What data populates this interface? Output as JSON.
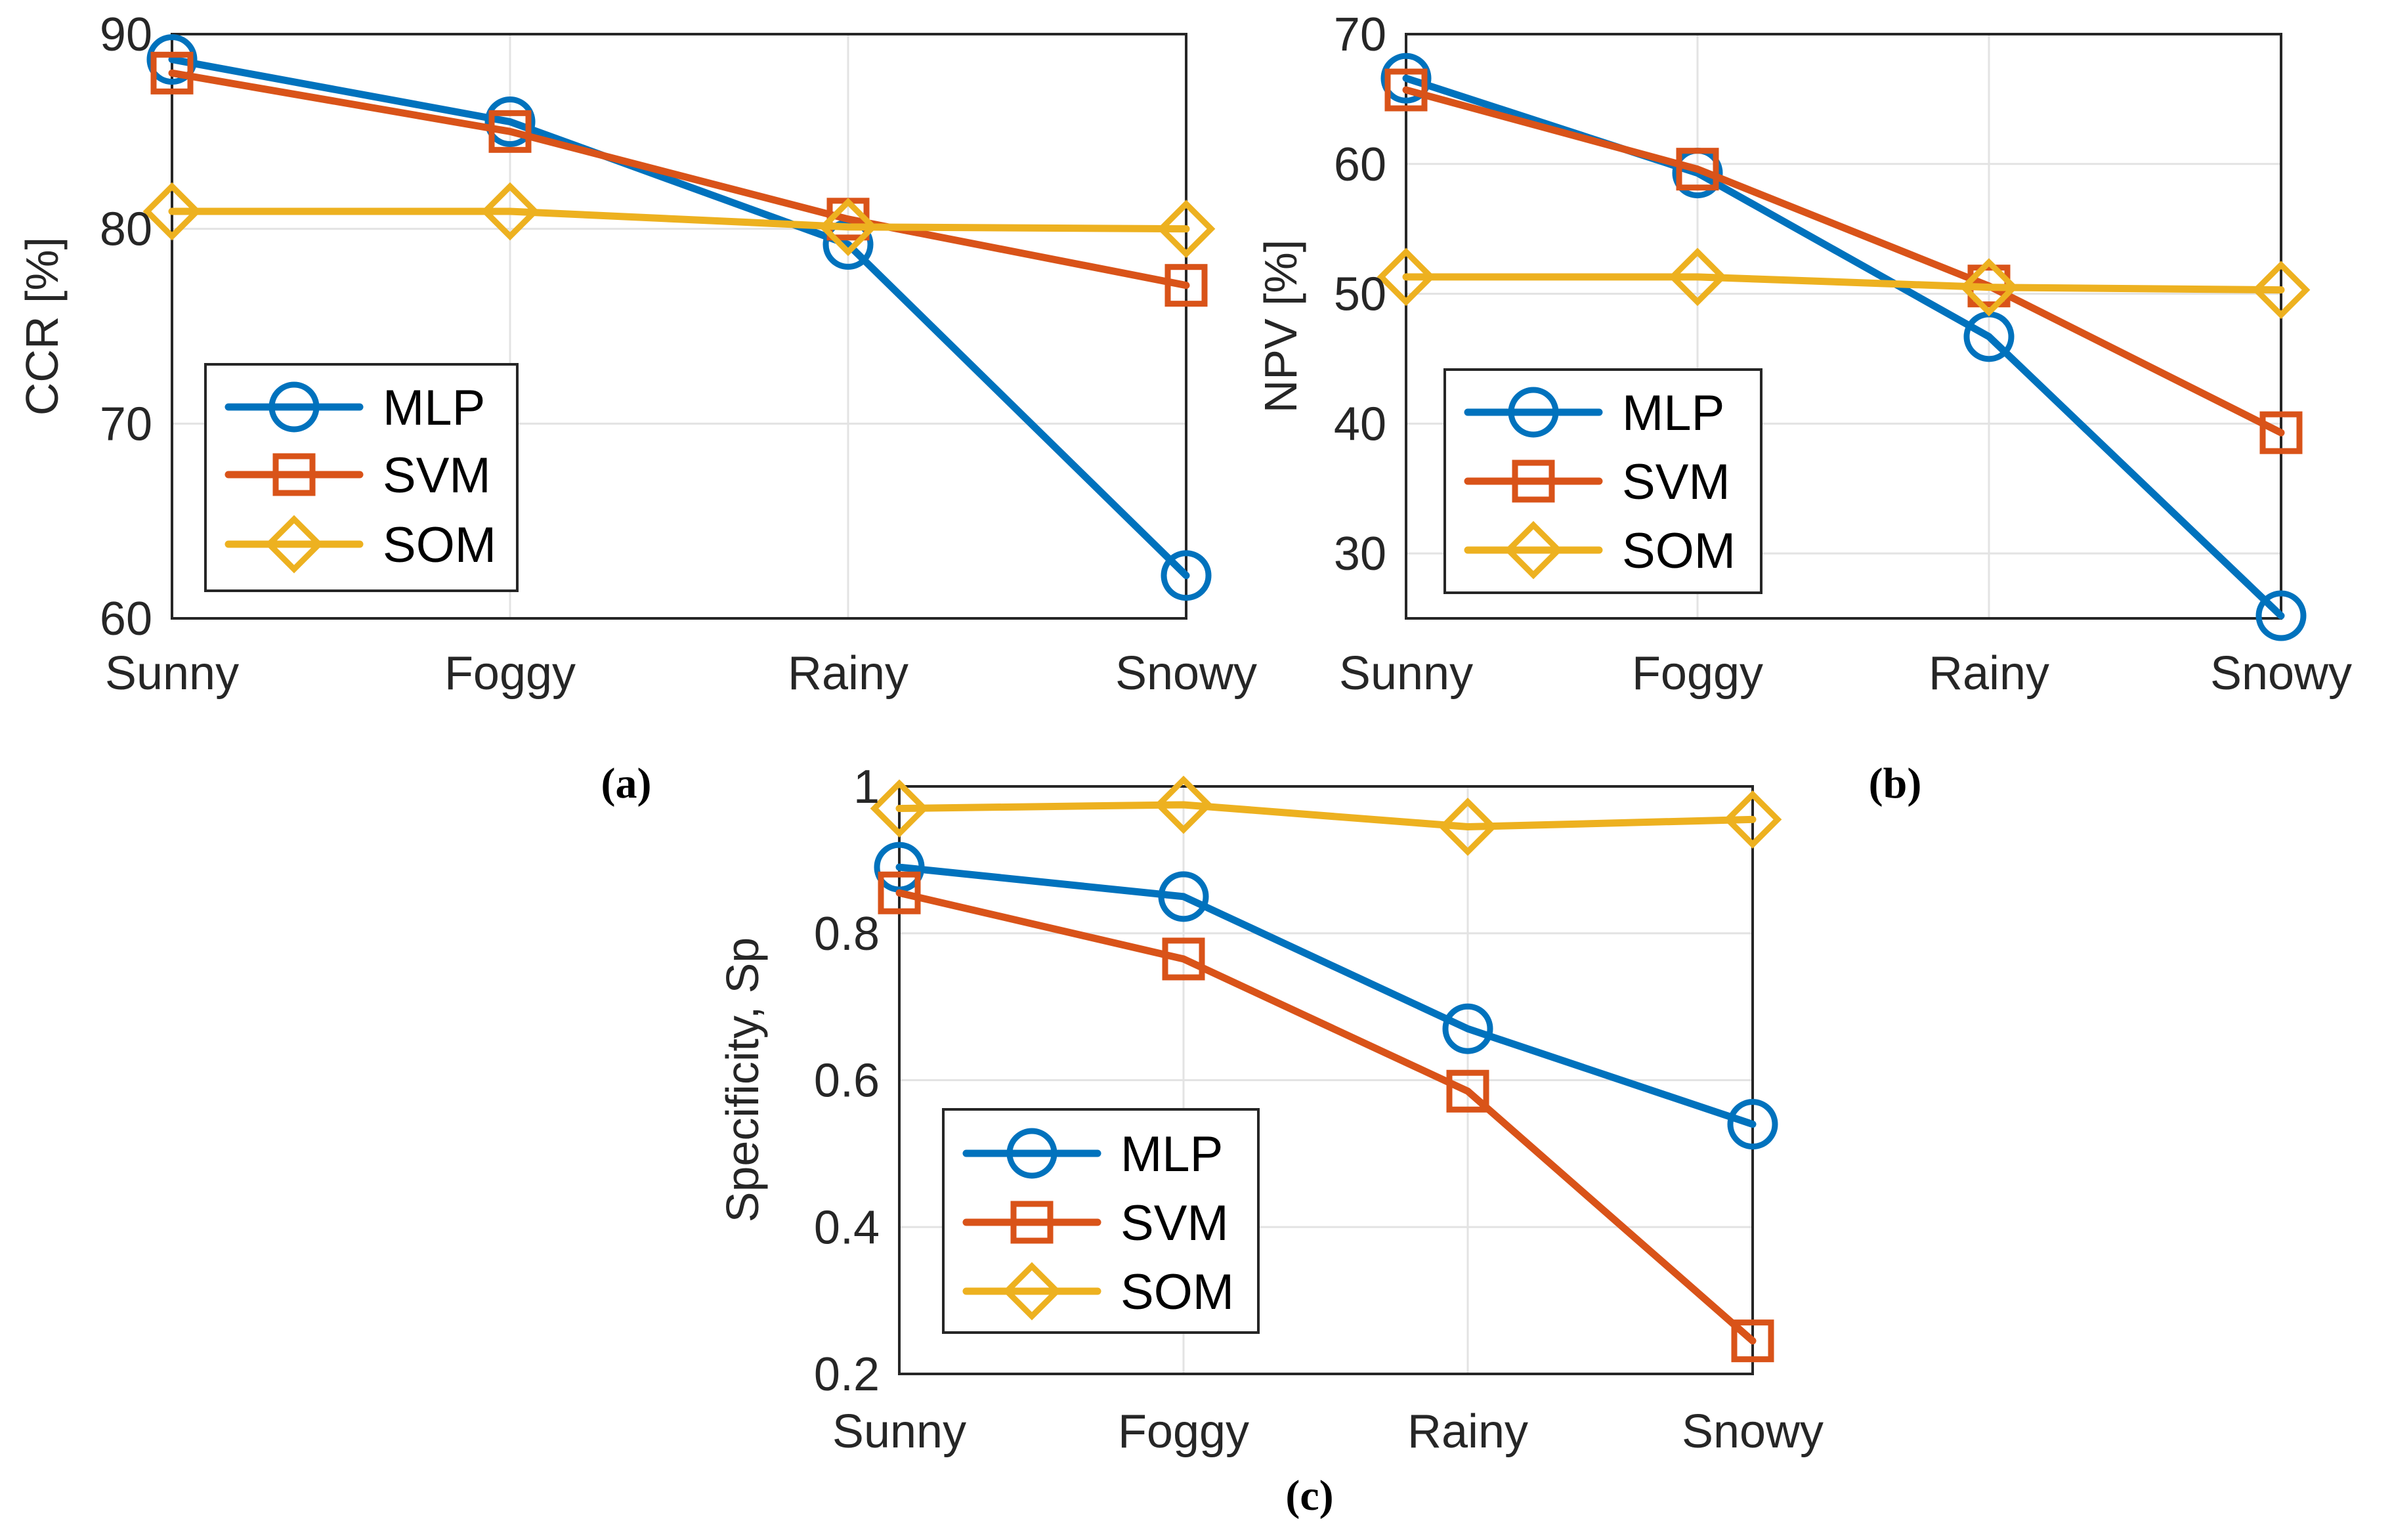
{
  "chart_data": [
    {
      "type": "line",
      "panel": "(a)",
      "title": "",
      "xlabel": "",
      "ylabel": "CCR [%]",
      "categories": [
        "Sunny",
        "Foggy",
        "Rainy",
        "Snowy"
      ],
      "ylim": [
        60,
        90
      ],
      "yticks": [
        60,
        70,
        80,
        90
      ],
      "grid": true,
      "legend_position": "bottom-left",
      "series": [
        {
          "name": "MLP",
          "marker": "circle",
          "color": "#0072BD",
          "values": [
            88.7,
            85.5,
            79.2,
            62.2
          ]
        },
        {
          "name": "SVM",
          "marker": "square",
          "color": "#D95319",
          "values": [
            88.0,
            85.0,
            80.5,
            77.1
          ]
        },
        {
          "name": "SOM",
          "marker": "diamond",
          "color": "#EDB120",
          "values": [
            80.9,
            80.9,
            80.1,
            80.0
          ]
        }
      ]
    },
    {
      "type": "line",
      "panel": "(b)",
      "title": "",
      "xlabel": "",
      "ylabel": "NPV [%]",
      "categories": [
        "Sunny",
        "Foggy",
        "Rainy",
        "Snowy"
      ],
      "ylim": [
        25,
        70
      ],
      "yticks": [
        30,
        40,
        50,
        60,
        70
      ],
      "grid": true,
      "legend_position": "bottom-left",
      "series": [
        {
          "name": "MLP",
          "marker": "circle",
          "color": "#0072BD",
          "values": [
            66.6,
            59.3,
            46.7,
            25.2
          ]
        },
        {
          "name": "SVM",
          "marker": "square",
          "color": "#D95319",
          "values": [
            65.7,
            59.6,
            50.6,
            39.3
          ]
        },
        {
          "name": "SOM",
          "marker": "diamond",
          "color": "#EDB120",
          "values": [
            51.3,
            51.3,
            50.5,
            50.3
          ]
        }
      ]
    },
    {
      "type": "line",
      "panel": "(c)",
      "title": "",
      "xlabel": "",
      "ylabel": "Specificity, Sp",
      "categories": [
        "Sunny",
        "Foggy",
        "Rainy",
        "Snowy"
      ],
      "ylim": [
        0.2,
        1
      ],
      "yticks": [
        0.2,
        0.4,
        0.6,
        0.8,
        1
      ],
      "grid": true,
      "legend_position": "bottom-left",
      "series": [
        {
          "name": "MLP",
          "marker": "circle",
          "color": "#0072BD",
          "values": [
            0.89,
            0.85,
            0.67,
            0.54
          ]
        },
        {
          "name": "SVM",
          "marker": "square",
          "color": "#D95319",
          "values": [
            0.855,
            0.765,
            0.585,
            0.245
          ]
        },
        {
          "name": "SOM",
          "marker": "diamond",
          "color": "#EDB120",
          "values": [
            0.97,
            0.975,
            0.945,
            0.955
          ]
        }
      ]
    }
  ]
}
